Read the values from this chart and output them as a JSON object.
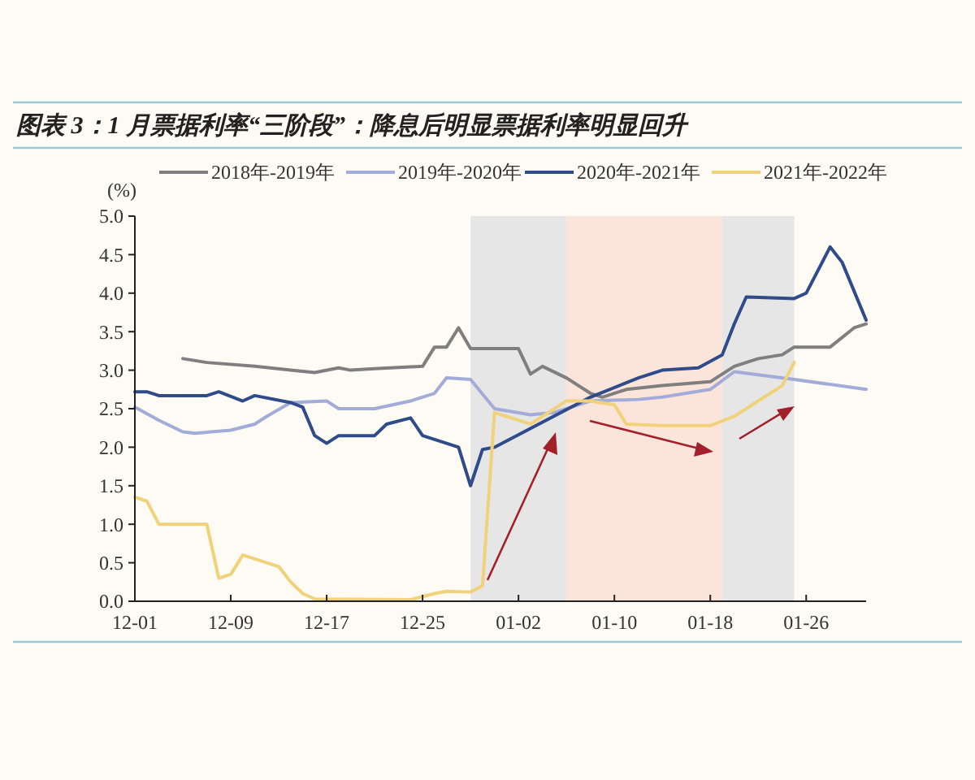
{
  "chart_data": {
    "type": "line",
    "title": "图表 3：1 月票据利率“三阶段”：降息后明显票据利率明显回升",
    "ylabel": "(%)",
    "xlim": [
      "2021-12-01",
      "2022-01-31"
    ],
    "xticks": [
      {
        "value": "2021-12-01",
        "label": "12-01"
      },
      {
        "value": "2021-12-09",
        "label": "12-09"
      },
      {
        "value": "2021-12-17",
        "label": "12-17"
      },
      {
        "value": "2021-12-25",
        "label": "12-25"
      },
      {
        "value": "2022-01-02",
        "label": "01-02"
      },
      {
        "value": "2022-01-10",
        "label": "01-10"
      },
      {
        "value": "2022-01-18",
        "label": "01-18"
      },
      {
        "value": "2022-01-26",
        "label": "01-26"
      }
    ],
    "ylim": [
      0,
      5
    ],
    "yticks": [
      {
        "value": 0,
        "label": "0.0"
      },
      {
        "value": 0.5,
        "label": "0.5"
      },
      {
        "value": 1,
        "label": "1.0"
      },
      {
        "value": 1.5,
        "label": "1.5"
      },
      {
        "value": 2,
        "label": "2.0"
      },
      {
        "value": 2.5,
        "label": "2.5"
      },
      {
        "value": 3,
        "label": "3.0"
      },
      {
        "value": 3.5,
        "label": "3.5"
      },
      {
        "value": 4,
        "label": "4.0"
      },
      {
        "value": 4.5,
        "label": "4.5"
      },
      {
        "value": 5,
        "label": "5.0"
      }
    ],
    "legend": "top",
    "marker": "none",
    "line_style": "solid",
    "bands": [
      {
        "axis": "x",
        "from": "2021-12-29",
        "to": "2022-01-06",
        "color": "#e6e6e6"
      },
      {
        "axis": "x",
        "from": "2022-01-06",
        "to": "2022-01-19",
        "color": "#fbe5da"
      },
      {
        "axis": "x",
        "from": "2022-01-19",
        "to": "2022-01-25",
        "color": "#e6e6e6"
      }
    ],
    "series": [
      {
        "name": "2018年-2019年",
        "color": "#7f7f7f",
        "x": [
          "2021-12-05",
          "2021-12-07",
          "2021-12-11",
          "2021-12-14",
          "2021-12-16",
          "2021-12-18",
          "2021-12-19",
          "2021-12-21",
          "2021-12-25",
          "2021-12-26",
          "2021-12-27",
          "2021-12-28",
          "2021-12-29",
          "2022-01-02",
          "2022-01-03",
          "2022-01-04",
          "2022-01-06",
          "2022-01-08",
          "2022-01-09",
          "2022-01-11",
          "2022-01-14",
          "2022-01-18",
          "2022-01-20",
          "2022-01-22",
          "2022-01-24",
          "2022-01-25",
          "2022-01-28",
          "2022-01-30",
          "2022-01-31"
        ],
        "values": [
          3.15,
          3.1,
          3.05,
          3.0,
          2.97,
          3.03,
          3.0,
          3.02,
          3.05,
          3.3,
          3.3,
          3.55,
          3.28,
          3.28,
          2.95,
          3.05,
          2.9,
          2.7,
          2.65,
          2.75,
          2.8,
          2.85,
          3.05,
          3.15,
          3.2,
          3.3,
          3.3,
          3.55,
          3.6
        ]
      },
      {
        "name": "2019年-2020年",
        "color": "#a3acd9",
        "x": [
          "2021-12-01",
          "2021-12-03",
          "2021-12-05",
          "2021-12-06",
          "2021-12-09",
          "2021-12-11",
          "2021-12-12",
          "2021-12-14",
          "2021-12-17",
          "2021-12-18",
          "2021-12-21",
          "2021-12-24",
          "2021-12-26",
          "2021-12-27",
          "2021-12-29",
          "2021-12-31",
          "2022-01-03",
          "2022-01-05",
          "2022-01-08",
          "2022-01-12",
          "2022-01-14",
          "2022-01-18",
          "2022-01-20",
          "2022-01-25",
          "2022-01-31"
        ],
        "values": [
          2.52,
          2.35,
          2.2,
          2.18,
          2.22,
          2.3,
          2.4,
          2.58,
          2.6,
          2.5,
          2.5,
          2.6,
          2.7,
          2.9,
          2.88,
          2.5,
          2.42,
          2.45,
          2.6,
          2.62,
          2.65,
          2.75,
          2.98,
          2.88,
          2.75
        ]
      },
      {
        "name": "2020年-2021年",
        "color": "#2f4b8a",
        "x": [
          "2021-12-01",
          "2021-12-02",
          "2021-12-03",
          "2021-12-07",
          "2021-12-08",
          "2021-12-10",
          "2021-12-11",
          "2021-12-14",
          "2021-12-15",
          "2021-12-16",
          "2021-12-17",
          "2021-12-18",
          "2021-12-21",
          "2021-12-22",
          "2021-12-24",
          "2021-12-25",
          "2021-12-28",
          "2021-12-29",
          "2021-12-30",
          "2021-12-31",
          "2022-01-08",
          "2022-01-12",
          "2022-01-14",
          "2022-01-17",
          "2022-01-19",
          "2022-01-20",
          "2022-01-21",
          "2022-01-25",
          "2022-01-26",
          "2022-01-28",
          "2022-01-29",
          "2022-01-31"
        ],
        "values": [
          2.72,
          2.72,
          2.67,
          2.67,
          2.72,
          2.6,
          2.67,
          2.58,
          2.52,
          2.15,
          2.05,
          2.15,
          2.15,
          2.3,
          2.38,
          2.15,
          2.0,
          1.5,
          1.97,
          2.0,
          2.65,
          2.9,
          3.0,
          3.03,
          3.2,
          3.6,
          3.95,
          3.93,
          4.0,
          4.6,
          4.4,
          3.65
        ]
      },
      {
        "name": "2021年-2022年",
        "color": "#f0d27a",
        "x": [
          "2021-12-01",
          "2021-12-02",
          "2021-12-03",
          "2021-12-07",
          "2021-12-08",
          "2021-12-09",
          "2021-12-10",
          "2021-12-12",
          "2021-12-13",
          "2021-12-14",
          "2021-12-15",
          "2021-12-16",
          "2021-12-24",
          "2021-12-26",
          "2021-12-27",
          "2021-12-29",
          "2021-12-30",
          "2021-12-31",
          "2022-01-01",
          "2022-01-03",
          "2022-01-04",
          "2022-01-06",
          "2022-01-08",
          "2022-01-10",
          "2022-01-11",
          "2022-01-14",
          "2022-01-18",
          "2022-01-20",
          "2022-01-22",
          "2022-01-24",
          "2022-01-25"
        ],
        "values": [
          1.35,
          1.3,
          1.0,
          1.0,
          0.3,
          0.35,
          0.6,
          0.5,
          0.45,
          0.25,
          0.1,
          0.03,
          0.02,
          0.1,
          0.13,
          0.12,
          0.2,
          2.45,
          2.4,
          2.3,
          2.4,
          2.6,
          2.6,
          2.55,
          2.3,
          2.28,
          2.28,
          2.4,
          2.6,
          2.8,
          3.1
        ]
      }
    ]
  }
}
